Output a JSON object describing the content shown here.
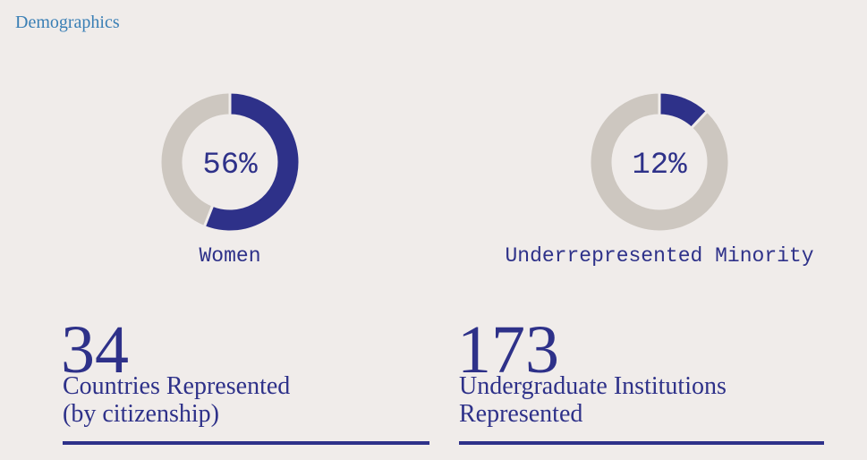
{
  "title": "Demographics",
  "chart_data": [
    {
      "type": "donut",
      "values": [
        56
      ],
      "value_labels": [
        "56%"
      ],
      "label": "Women",
      "color": "#2e3189",
      "track_color": "#cdc7c0",
      "ylim": [
        0,
        100
      ]
    },
    {
      "type": "donut",
      "values": [
        12
      ],
      "value_labels": [
        "12%"
      ],
      "label": "Underrepresented Minority",
      "color": "#2e3189",
      "track_color": "#cdc7c0",
      "ylim": [
        0,
        100
      ]
    }
  ],
  "stats": [
    {
      "value": 34,
      "lines": [
        "Countries Represented",
        "(by citizenship)"
      ]
    },
    {
      "value": 173,
      "lines": [
        "Undergraduate Institutions",
        "Represented"
      ]
    }
  ]
}
